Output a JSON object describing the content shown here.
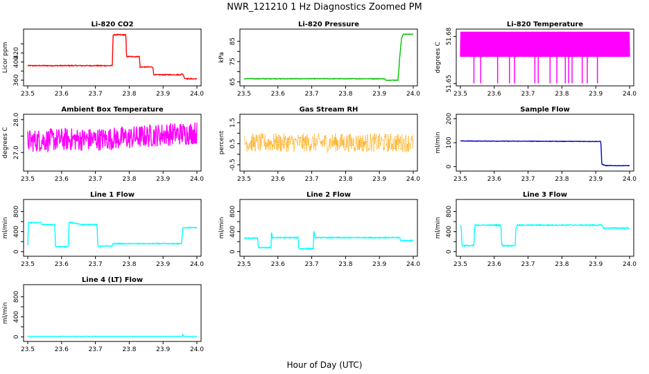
{
  "figure": {
    "title": "NWR_121210  1 Hz Diagnostics Zoomed PM",
    "xlabel": "Hour of Day (UTC)"
  },
  "chart_data": [
    {
      "type": "line",
      "title": "Li-820 CO2",
      "ylabel": "Licor ppm",
      "color": "#ff0000",
      "xlim": [
        23.5,
        24.0
      ],
      "ylim": [
        352,
        468
      ],
      "yticks": [
        360,
        380,
        400,
        420,
        440
      ],
      "ytick_labels": [
        "360",
        "",
        "400",
        "420",
        ""
      ],
      "xticks": [
        "23.5",
        "23.6",
        "23.7",
        "23.8",
        "23.9",
        "24.0"
      ],
      "x": [
        23.5,
        23.75,
        23.752,
        23.76,
        23.79,
        23.792,
        23.83,
        23.832,
        23.87,
        23.872,
        23.95,
        23.958,
        23.964,
        23.975,
        24.0
      ],
      "y": [
        392,
        392,
        460,
        460,
        460,
        412,
        412,
        389,
        389,
        372,
        372,
        374,
        364,
        363,
        363
      ],
      "noise": 1.0
    },
    {
      "type": "line",
      "title": "Li-820 Pressure",
      "ylabel": "kPa",
      "color": "#00c000",
      "xlim": [
        23.5,
        24.0
      ],
      "ylim": [
        64,
        90
      ],
      "yticks": [
        65,
        70,
        75,
        80,
        85
      ],
      "ytick_labels": [
        "65",
        "",
        "75",
        "",
        "85"
      ],
      "xticks": [
        "23.5",
        "23.6",
        "23.7",
        "23.8",
        "23.9",
        "24.0"
      ],
      "x": [
        23.5,
        23.915,
        23.918,
        23.955,
        23.96,
        23.965,
        23.97,
        24.0
      ],
      "y": [
        66.5,
        66.5,
        65.8,
        65.8,
        77,
        86,
        88.5,
        88.5
      ],
      "noise": 0.15
    },
    {
      "type": "line",
      "title": "Li-820 Temperature",
      "ylabel": "degrees C",
      "color": "#ff00ff",
      "xlim": [
        23.5,
        24.0
      ],
      "ylim": [
        51.6499,
        51.6833
      ],
      "yticks": [
        51.65,
        51.68
      ],
      "ytick_labels": [
        "51.65",
        "51.68"
      ],
      "xticks": [
        "23.5",
        "23.6",
        "23.7",
        "23.8",
        "23.9",
        "24.0"
      ],
      "levels": [
        51.667,
        51.683
      ],
      "dips": [
        23.54,
        23.56,
        23.61,
        23.645,
        23.66,
        23.72,
        23.73,
        23.765,
        23.785,
        23.81,
        23.82,
        23.83,
        23.86,
        23.875,
        23.905
      ]
    },
    {
      "type": "line",
      "title": "Ambient Box Temperature",
      "ylabel": "degrees C",
      "color": "#ff00ff",
      "xlim": [
        23.5,
        24.0
      ],
      "ylim": [
        26.5,
        28.1
      ],
      "yticks": [
        27.0,
        27.5,
        28.0
      ],
      "ytick_labels": [
        "27.0",
        "",
        "28.0"
      ],
      "xticks": [
        "23.5",
        "23.6",
        "23.7",
        "23.8",
        "23.9",
        "24.0"
      ],
      "x": [
        23.5,
        23.6,
        23.7,
        23.8,
        23.9,
        24.0
      ],
      "y": [
        27.35,
        27.4,
        27.4,
        27.45,
        27.55,
        27.6
      ],
      "noise": 0.35
    },
    {
      "type": "line",
      "title": "Gas Stream RH",
      "ylabel": "percent",
      "color": "#ffa500",
      "dotted": true,
      "xlim": [
        23.5,
        24.0
      ],
      "ylim": [
        -0.7,
        1.8
      ],
      "yticks": [
        -0.5,
        0.0,
        0.5,
        1.0,
        1.5
      ],
      "ytick_labels": [
        "-0.5",
        "",
        "0.5",
        "",
        "1.5"
      ],
      "xticks": [
        "23.5",
        "23.6",
        "23.7",
        "23.8",
        "23.9",
        "24.0"
      ],
      "x": [
        23.5,
        24.0
      ],
      "y": [
        0.55,
        0.55
      ],
      "noise": 0.45
    },
    {
      "type": "line",
      "title": "Sample Flow",
      "ylabel": "ml/min",
      "color": "#0000cd",
      "xlim": [
        23.5,
        24.0
      ],
      "ylim": [
        -10,
        210
      ],
      "yticks": [
        0,
        100,
        200
      ],
      "ytick_labels": [
        "0",
        "100",
        "200"
      ],
      "xticks": [
        "23.5",
        "23.6",
        "23.7",
        "23.8",
        "23.9",
        "24.0"
      ],
      "x": [
        23.5,
        23.915,
        23.918,
        23.93,
        24.0
      ],
      "y": [
        107,
        105,
        10,
        4,
        4
      ],
      "noise": 1.0
    },
    {
      "type": "line",
      "title": "Line 1 Flow",
      "ylabel": "ml/min",
      "color": "#00ffff",
      "xlim": [
        23.5,
        24.0
      ],
      "ylim": [
        -50,
        1000
      ],
      "yticks": [
        0,
        200,
        400,
        600,
        800
      ],
      "ytick_labels": [
        "0",
        "400",
        "800"
      ],
      "ytick_label_values": [
        0,
        400,
        800
      ],
      "xticks": [
        "23.5",
        "23.6",
        "23.7",
        "23.8",
        "23.9",
        "24.0"
      ],
      "x": [
        23.5,
        23.502,
        23.54,
        23.542,
        23.58,
        23.582,
        23.62,
        23.622,
        23.63,
        23.66,
        23.662,
        23.705,
        23.707,
        23.75,
        23.752,
        23.955,
        23.958,
        24.0
      ],
      "y": [
        120,
        580,
        580,
        540,
        540,
        100,
        100,
        580,
        580,
        540,
        540,
        540,
        110,
        110,
        160,
        160,
        480,
        480
      ],
      "noise": 8
    },
    {
      "type": "line",
      "title": "Line 2 Flow",
      "ylabel": "ml/min",
      "color": "#00ffff",
      "xlim": [
        23.5,
        24.0
      ],
      "ylim": [
        -50,
        1000
      ],
      "yticks": [
        0,
        200,
        400,
        600,
        800
      ],
      "ytick_labels": [
        "0",
        "400",
        "800"
      ],
      "ytick_label_values": [
        0,
        400,
        800
      ],
      "xticks": [
        "23.5",
        "23.6",
        "23.7",
        "23.8",
        "23.9",
        "24.0"
      ],
      "x": [
        23.5,
        23.54,
        23.542,
        23.58,
        23.581,
        23.584,
        23.66,
        23.662,
        23.705,
        23.706,
        23.709,
        23.96,
        23.963,
        24.0
      ],
      "y": [
        270,
        270,
        80,
        80,
        400,
        280,
        280,
        60,
        60,
        420,
        280,
        280,
        220,
        220
      ],
      "noise": 10
    },
    {
      "type": "line",
      "title": "Line 3 Flow",
      "ylabel": "ml/min",
      "color": "#00ffff",
      "xlim": [
        23.5,
        24.0
      ],
      "ylim": [
        -50,
        1000
      ],
      "yticks": [
        0,
        200,
        400,
        600,
        800
      ],
      "ytick_labels": [
        "0",
        "400",
        "800"
      ],
      "ytick_label_values": [
        0,
        400,
        800
      ],
      "xticks": [
        "23.5",
        "23.6",
        "23.7",
        "23.8",
        "23.9",
        "24.0"
      ],
      "x": [
        23.5,
        23.502,
        23.505,
        23.54,
        23.542,
        23.545,
        23.62,
        23.622,
        23.662,
        23.664,
        23.668,
        23.92,
        23.922,
        24.0
      ],
      "y": [
        520,
        520,
        120,
        120,
        520,
        530,
        530,
        120,
        120,
        480,
        530,
        530,
        470,
        470
      ],
      "noise": 10
    },
    {
      "type": "line",
      "title": "Line 4 (LT) Flow",
      "ylabel": "ml/min",
      "color": "#00ffff",
      "xlim": [
        23.5,
        24.0
      ],
      "ylim": [
        -50,
        1000
      ],
      "yticks": [
        0,
        200,
        400,
        600,
        800
      ],
      "ytick_labels": [
        "0",
        "400",
        "800"
      ],
      "ytick_label_values": [
        0,
        400,
        800
      ],
      "xticks": [
        "23.5",
        "23.6",
        "23.7",
        "23.8",
        "23.9",
        "24.0"
      ],
      "x": [
        23.5,
        23.957,
        23.958,
        23.96,
        24.0
      ],
      "y": [
        10,
        10,
        70,
        10,
        10
      ],
      "noise": 2
    }
  ]
}
